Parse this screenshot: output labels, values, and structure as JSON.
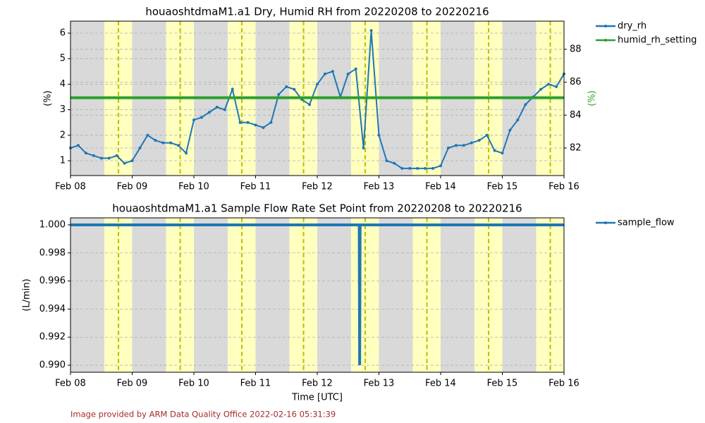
{
  "chart_data": [
    {
      "type": "line",
      "title": "houaoshtdmaM1.a1 Dry, Humid RH from 20220208 to 20220216",
      "ylabel": "(%)",
      "y2label": "(%)",
      "y2label_color": "#2ca02c",
      "xlim": [
        "2022-02-08",
        "2022-02-16"
      ],
      "xticks": [
        {
          "value": "2022-02-08",
          "label": "Feb 08"
        },
        {
          "value": "2022-02-09",
          "label": "Feb 09"
        },
        {
          "value": "2022-02-10",
          "label": "Feb 10"
        },
        {
          "value": "2022-02-11",
          "label": "Feb 11"
        },
        {
          "value": "2022-02-12",
          "label": "Feb 12"
        },
        {
          "value": "2022-02-13",
          "label": "Feb 13"
        },
        {
          "value": "2022-02-14",
          "label": "Feb 14"
        },
        {
          "value": "2022-02-15",
          "label": "Feb 15"
        },
        {
          "value": "2022-02-16",
          "label": "Feb 16"
        }
      ],
      "ylim": [
        0.42,
        6.47
      ],
      "yticks": [
        1,
        2,
        3,
        4,
        5,
        6
      ],
      "y2lim": [
        80.33,
        89.71
      ],
      "y2ticks": [
        82,
        84,
        86,
        88
      ],
      "grid": true,
      "night_color": "#d9d9d9",
      "day_color": "#ffffc0",
      "peak_color": "#bfbf00",
      "day_periods": [
        {
          "start": "2022-02-08T13:10",
          "end": "2022-02-09T00:00",
          "peak": "2022-02-08T18:40"
        },
        {
          "start": "2022-02-09T13:10",
          "end": "2022-02-10T00:00",
          "peak": "2022-02-09T18:40"
        },
        {
          "start": "2022-02-10T13:10",
          "end": "2022-02-11T00:00",
          "peak": "2022-02-10T18:40"
        },
        {
          "start": "2022-02-11T13:10",
          "end": "2022-02-12T00:00",
          "peak": "2022-02-11T18:40"
        },
        {
          "start": "2022-02-12T13:10",
          "end": "2022-02-13T00:00",
          "peak": "2022-02-12T18:40"
        },
        {
          "start": "2022-02-13T13:10",
          "end": "2022-02-14T00:00",
          "peak": "2022-02-13T18:40"
        },
        {
          "start": "2022-02-14T13:10",
          "end": "2022-02-15T00:00",
          "peak": "2022-02-14T18:40"
        },
        {
          "start": "2022-02-15T13:10",
          "end": "2022-02-16T00:00",
          "peak": "2022-02-15T18:40"
        }
      ],
      "series": [
        {
          "name": "dry_rh",
          "color": "#1f77b4",
          "width": 2,
          "x": [
            "2022-02-08T00:00",
            "2022-02-08T03:00",
            "2022-02-08T06:00",
            "2022-02-08T09:00",
            "2022-02-08T12:00",
            "2022-02-08T15:00",
            "2022-02-08T18:00",
            "2022-02-08T21:00",
            "2022-02-09T00:00",
            "2022-02-09T03:00",
            "2022-02-09T06:00",
            "2022-02-09T09:00",
            "2022-02-09T12:00",
            "2022-02-09T15:00",
            "2022-02-09T18:00",
            "2022-02-09T21:00",
            "2022-02-10T00:00",
            "2022-02-10T03:00",
            "2022-02-10T06:00",
            "2022-02-10T09:00",
            "2022-02-10T12:00",
            "2022-02-10T15:00",
            "2022-02-10T18:00",
            "2022-02-10T21:00",
            "2022-02-11T00:00",
            "2022-02-11T03:00",
            "2022-02-11T06:00",
            "2022-02-11T09:00",
            "2022-02-11T12:00",
            "2022-02-11T15:00",
            "2022-02-11T18:00",
            "2022-02-11T21:00",
            "2022-02-12T00:00",
            "2022-02-12T03:00",
            "2022-02-12T06:00",
            "2022-02-12T09:00",
            "2022-02-12T12:00",
            "2022-02-12T15:00",
            "2022-02-12T18:00",
            "2022-02-12T21:00",
            "2022-02-13T00:00",
            "2022-02-13T03:00",
            "2022-02-13T06:00",
            "2022-02-13T09:00",
            "2022-02-13T12:00",
            "2022-02-13T15:00",
            "2022-02-13T18:00",
            "2022-02-13T21:00",
            "2022-02-14T00:00",
            "2022-02-14T03:00",
            "2022-02-14T06:00",
            "2022-02-14T09:00",
            "2022-02-14T12:00",
            "2022-02-14T15:00",
            "2022-02-14T18:00",
            "2022-02-14T21:00",
            "2022-02-15T00:00",
            "2022-02-15T03:00",
            "2022-02-15T06:00",
            "2022-02-15T09:00",
            "2022-02-15T12:00",
            "2022-02-15T15:00",
            "2022-02-15T18:00",
            "2022-02-15T21:00",
            "2022-02-16T00:00"
          ],
          "values": [
            1.5,
            1.6,
            1.3,
            1.2,
            1.1,
            1.1,
            1.2,
            0.9,
            1.0,
            1.5,
            2.0,
            1.8,
            1.7,
            1.7,
            1.6,
            1.3,
            2.6,
            2.7,
            2.9,
            3.1,
            3.0,
            3.8,
            2.5,
            2.5,
            2.4,
            2.3,
            2.5,
            3.6,
            3.9,
            3.8,
            3.4,
            3.2,
            4.0,
            4.4,
            4.5,
            3.5,
            4.4,
            4.6,
            1.5,
            6.1,
            2.0,
            1.0,
            0.9,
            0.7,
            0.7,
            0.7,
            0.7,
            0.7,
            0.8,
            1.5,
            1.6,
            1.6,
            1.7,
            1.8,
            2.0,
            1.4,
            1.3,
            2.2,
            2.6,
            3.2,
            3.5,
            3.8,
            4.0,
            3.9,
            4.4
          ]
        },
        {
          "name": "humid_rh_setting",
          "color": "#2ca02c",
          "width": 4,
          "axis": "y2",
          "x": [
            "2022-02-08T00:00",
            "2022-02-16T00:00"
          ],
          "values": [
            85.06,
            85.06
          ]
        }
      ]
    },
    {
      "type": "line",
      "title": "houaoshtdmaM1.a1 Sample Flow Rate Set Point from 20220208 to 20220216",
      "ylabel": "(L/min)",
      "xlabel": "Time [UTC]",
      "xlim": [
        "2022-02-08",
        "2022-02-16"
      ],
      "xticks": [
        {
          "value": "2022-02-08",
          "label": "Feb 08"
        },
        {
          "value": "2022-02-09",
          "label": "Feb 09"
        },
        {
          "value": "2022-02-10",
          "label": "Feb 10"
        },
        {
          "value": "2022-02-11",
          "label": "Feb 11"
        },
        {
          "value": "2022-02-12",
          "label": "Feb 12"
        },
        {
          "value": "2022-02-13",
          "label": "Feb 13"
        },
        {
          "value": "2022-02-14",
          "label": "Feb 14"
        },
        {
          "value": "2022-02-15",
          "label": "Feb 15"
        },
        {
          "value": "2022-02-16",
          "label": "Feb 16"
        }
      ],
      "ylim": [
        0.9895,
        1.0005
      ],
      "yticks": [
        {
          "value": 0.99,
          "label": "0.990"
        },
        0.992,
        0.994,
        0.996,
        0.998,
        {
          "value": 1,
          "label": "1.000"
        }
      ],
      "grid": true,
      "night_color": "#d9d9d9",
      "day_color": "#ffffc0",
      "peak_color": "#bfbf00",
      "day_periods": [
        {
          "start": "2022-02-08T13:10",
          "end": "2022-02-09T00:00",
          "peak": "2022-02-08T18:40"
        },
        {
          "start": "2022-02-09T13:10",
          "end": "2022-02-10T00:00",
          "peak": "2022-02-09T18:40"
        },
        {
          "start": "2022-02-10T13:10",
          "end": "2022-02-11T00:00",
          "peak": "2022-02-10T18:40"
        },
        {
          "start": "2022-02-11T13:10",
          "end": "2022-02-12T00:00",
          "peak": "2022-02-11T18:40"
        },
        {
          "start": "2022-02-12T13:10",
          "end": "2022-02-13T00:00",
          "peak": "2022-02-12T18:40"
        },
        {
          "start": "2022-02-13T13:10",
          "end": "2022-02-14T00:00",
          "peak": "2022-02-13T18:40"
        },
        {
          "start": "2022-02-14T13:10",
          "end": "2022-02-15T00:00",
          "peak": "2022-02-14T18:40"
        },
        {
          "start": "2022-02-15T13:10",
          "end": "2022-02-16T00:00",
          "peak": "2022-02-15T18:40"
        }
      ],
      "series": [
        {
          "name": "sample_flow",
          "color": "#1f77b4",
          "width": 4,
          "x": [
            "2022-02-08T00:00",
            "2022-02-12T16:20",
            "2022-02-12T16:30",
            "2022-02-12T16:40",
            "2022-02-16T00:00"
          ],
          "values": [
            1,
            1,
            0.99,
            1,
            1
          ]
        }
      ]
    }
  ],
  "footer": "Image provided by ARM Data Quality Office 2022-02-16 05:31:39"
}
